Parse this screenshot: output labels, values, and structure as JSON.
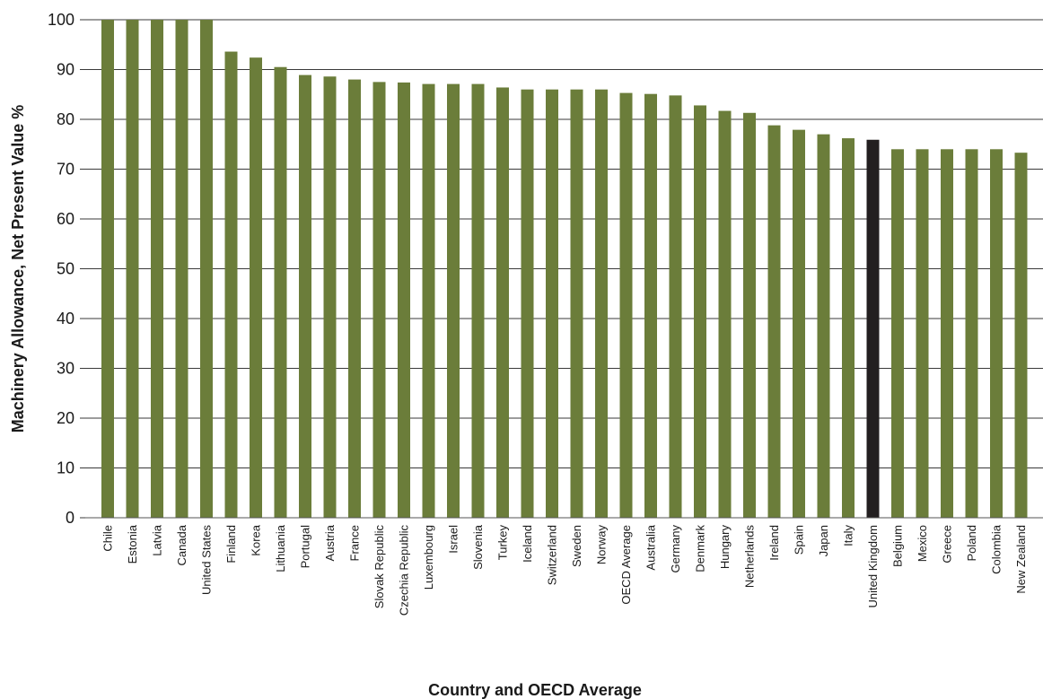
{
  "chart_data": {
    "type": "bar",
    "title": "",
    "xlabel": "Country and OECD Average",
    "ylabel": "Machinery Allowance, Net Present Value  %",
    "ylim": [
      0,
      100
    ],
    "yticks": [
      0,
      10,
      20,
      30,
      40,
      50,
      60,
      70,
      80,
      90,
      100
    ],
    "grid": "horizontal",
    "legend": "none",
    "colors": {
      "default": "#6b7d3a",
      "highlight": "#231f20"
    },
    "highlight_category": "United Kingdom",
    "categories": [
      "Chile",
      "Estonia",
      "Latvia",
      "Canada",
      "United States",
      "Finland",
      "Korea",
      "Lithuania",
      "Portugal",
      "Austria",
      "France",
      "Slovak Republic",
      "Czechia Republic",
      "Luxembourg",
      "Israel",
      "Slovenia",
      "Turkey",
      "Iceland",
      "Switzerland",
      "Sweden",
      "Norway",
      "OECD Average",
      "Australia",
      "Germany",
      "Denmark",
      "Hungary",
      "Netherlands",
      "Ireland",
      "Spain",
      "Japan",
      "Italy",
      "United Kingdom",
      "Belgium",
      "Mexico",
      "Greece",
      "Poland",
      "Colombia",
      "New Zealand"
    ],
    "values": [
      100,
      100,
      100,
      100,
      100,
      93.6,
      92.4,
      90.5,
      88.9,
      88.6,
      88.0,
      87.5,
      87.4,
      87.1,
      87.1,
      87.1,
      86.4,
      86.0,
      86.0,
      86.0,
      86.0,
      85.3,
      85.1,
      84.8,
      82.8,
      81.7,
      81.3,
      78.8,
      77.9,
      77.0,
      76.2,
      75.9,
      74.0,
      74.0,
      74.0,
      74.0,
      74.0,
      73.3
    ]
  }
}
